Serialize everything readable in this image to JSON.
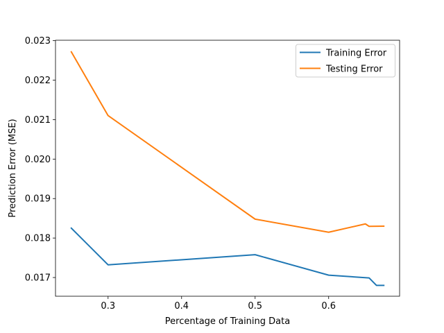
{
  "chart_data": {
    "type": "line",
    "title": "",
    "xlabel": "Percentage of Training Data",
    "ylabel": "Prediction Error (MSE)",
    "xlim": [
      0.2285,
      0.6965
    ],
    "ylim": [
      0.016526,
      0.023011
    ],
    "xticks": [
      0.3,
      0.4,
      0.5,
      0.6
    ],
    "xtick_labels": [
      "0.3",
      "0.4",
      "0.5",
      "0.6"
    ],
    "yticks": [
      0.017,
      0.018,
      0.019,
      0.02,
      0.021,
      0.022,
      0.023
    ],
    "ytick_labels": [
      "0.017",
      "0.018",
      "0.019",
      "0.020",
      "0.021",
      "0.022",
      "0.023"
    ],
    "legend_position": "top-right",
    "series": [
      {
        "name": "Training Error",
        "color": "#1f77b4",
        "x": [
          0.25,
          0.3,
          0.5,
          0.6,
          0.655,
          0.665,
          0.675
        ],
        "y": [
          0.018251,
          0.017322,
          0.017578,
          0.01706,
          0.01699,
          0.016801,
          0.016801
        ]
      },
      {
        "name": "Testing Error",
        "color": "#ff7f0e",
        "x": [
          0.25,
          0.3,
          0.5,
          0.6,
          0.65,
          0.655,
          0.675
        ],
        "y": [
          0.022716,
          0.021103,
          0.018479,
          0.018147,
          0.018358,
          0.018297,
          0.0183
        ]
      }
    ]
  }
}
